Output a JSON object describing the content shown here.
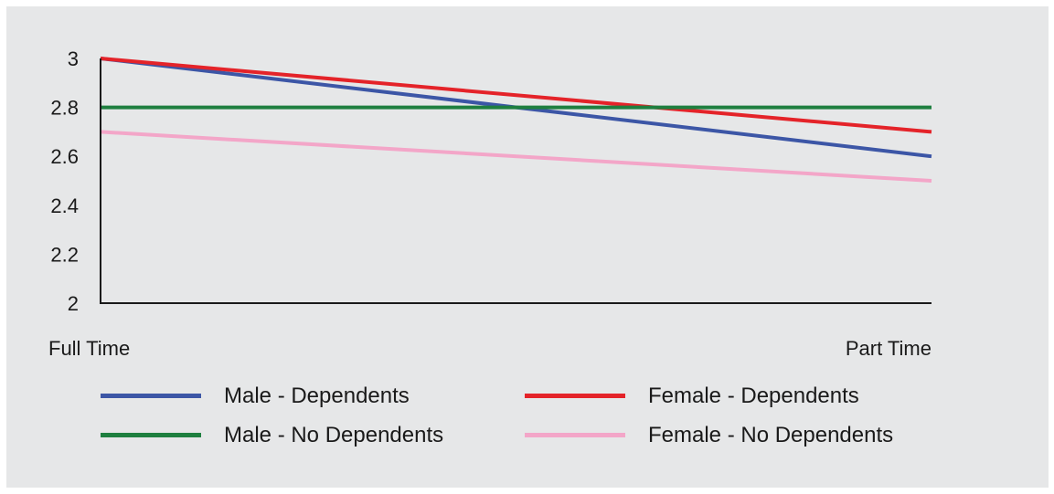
{
  "chart_data": {
    "type": "line",
    "categories": [
      "Full Time",
      "Part Time"
    ],
    "yticks": [
      "2",
      "2.2",
      "2.4",
      "2.6",
      "2.8",
      "3"
    ],
    "ylim": [
      2,
      3
    ],
    "grid": false,
    "legend_position": "bottom",
    "series": [
      {
        "name": "Male - Dependents",
        "values": [
          3.0,
          2.6
        ],
        "color": "#3c56a6"
      },
      {
        "name": "Female - Dependents",
        "values": [
          3.0,
          2.7
        ],
        "color": "#e42329"
      },
      {
        "name": "Male - No Dependents",
        "values": [
          2.8,
          2.8
        ],
        "color": "#1e7f3f"
      },
      {
        "name": "Female - No Dependents",
        "values": [
          2.7,
          2.5
        ],
        "color": "#f3a6c8"
      }
    ]
  }
}
